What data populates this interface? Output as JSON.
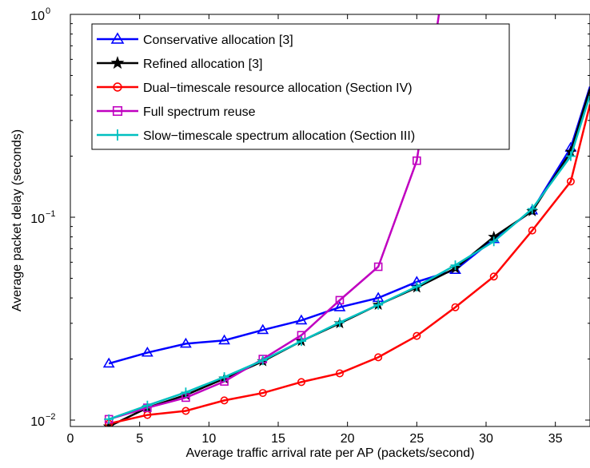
{
  "chart_data": {
    "type": "line",
    "title": "",
    "xlabel": "Average traffic arrival rate per AP (packets/second)",
    "ylabel": "Average packet delay (seconds)",
    "xlim": [
      0,
      37.5
    ],
    "ylim": [
      0.0093,
      1.0
    ],
    "yscale": "log",
    "grid": false,
    "legend_position": "top-left",
    "x_ticks": [
      0,
      5,
      10,
      15,
      20,
      25,
      30,
      35
    ],
    "x_tick_labels": [
      "0",
      "5",
      "10",
      "15",
      "20",
      "25",
      "30",
      "35"
    ],
    "y_ticks": [
      0.01,
      0.1,
      1
    ],
    "y_tick_labels": [
      {
        "base": "10",
        "exp": "−2"
      },
      {
        "base": "10",
        "exp": "−1"
      },
      {
        "base": "10",
        "exp": "0"
      }
    ],
    "series": [
      {
        "name": "Conservative allocation [3]",
        "color": "#0000ff",
        "marker": "triangle",
        "x": [
          2.78,
          5.56,
          8.33,
          11.11,
          13.89,
          16.67,
          19.44,
          22.22,
          25.0,
          27.78,
          30.56,
          33.33,
          36.11,
          37.5
        ],
        "y": [
          0.019,
          0.0215,
          0.0238,
          0.0247,
          0.0278,
          0.031,
          0.036,
          0.04,
          0.048,
          0.055,
          0.078,
          0.108,
          0.22,
          0.44
        ]
      },
      {
        "name": "Refined allocation [3]",
        "color": "#000000",
        "marker": "star",
        "x": [
          2.78,
          5.56,
          8.33,
          11.11,
          13.89,
          16.67,
          19.44,
          22.22,
          25.0,
          27.78,
          30.56,
          33.33,
          36.11,
          37.5
        ],
        "y": [
          0.0093,
          0.0115,
          0.0133,
          0.016,
          0.0195,
          0.0245,
          0.03,
          0.037,
          0.045,
          0.056,
          0.08,
          0.107,
          0.21,
          0.43
        ]
      },
      {
        "name": "Dual−timescale resource allocation (Section IV)",
        "color": "#ff0000",
        "marker": "circle",
        "x": [
          2.78,
          5.56,
          8.33,
          11.11,
          13.89,
          16.67,
          19.44,
          22.22,
          25.0,
          27.78,
          30.56,
          33.33,
          36.11,
          37.5
        ],
        "y": [
          0.0096,
          0.0106,
          0.0111,
          0.0125,
          0.0136,
          0.0154,
          0.017,
          0.0204,
          0.026,
          0.036,
          0.051,
          0.086,
          0.15,
          0.36
        ]
      },
      {
        "name": "Full spectrum reuse",
        "color": "#c000c0",
        "marker": "square",
        "x": [
          2.78,
          5.56,
          8.33,
          11.11,
          13.89,
          16.67,
          19.44,
          22.22,
          25.0,
          26.6
        ],
        "y": [
          0.0101,
          0.0115,
          0.0129,
          0.0155,
          0.02,
          0.0262,
          0.039,
          0.057,
          0.19,
          1.0
        ]
      },
      {
        "name": "Slow−timescale spectrum allocation (Section III)",
        "color": "#00c0c0",
        "marker": "plus",
        "x": [
          2.78,
          5.56,
          8.33,
          11.11,
          13.89,
          16.67,
          19.44,
          22.22,
          25.0,
          27.78,
          30.56,
          33.33,
          36.11,
          37.5
        ],
        "y": [
          0.0101,
          0.0118,
          0.0137,
          0.0163,
          0.0197,
          0.0245,
          0.0303,
          0.037,
          0.0455,
          0.058,
          0.076,
          0.11,
          0.2,
          0.4
        ]
      }
    ]
  }
}
